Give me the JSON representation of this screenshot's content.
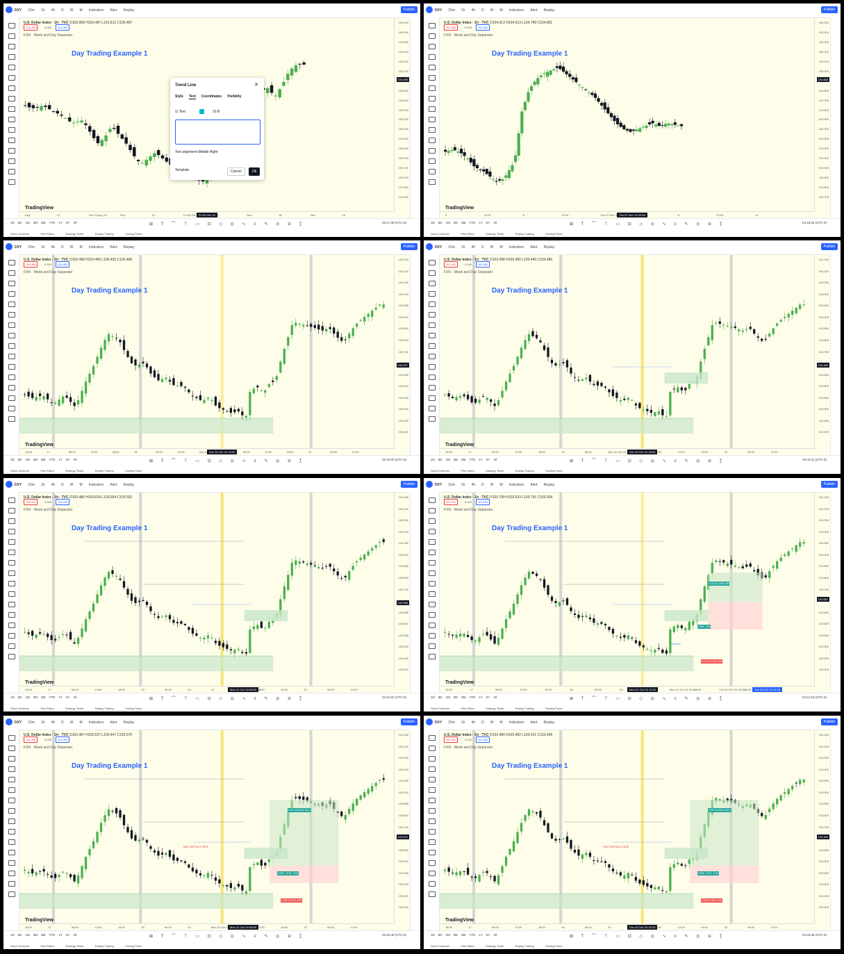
{
  "common": {
    "app_symbol": "DXY",
    "menu": [
      "15m",
      "1h",
      "4h",
      "D",
      "W",
      "M",
      "Indicators",
      "Alert",
      "Replay"
    ],
    "publish_label": "Publish",
    "instrument_title": "U.S. Dollar Index · 1h · TVC",
    "indicator_label": "FXN · Week and Day Separator",
    "chart_title": "Day Trading Example 1",
    "tradingview_logo": "TradingView",
    "ranges": [
      "1D",
      "5D",
      "1M",
      "3M",
      "6M",
      "YTD",
      "1Y",
      "5Y",
      "All"
    ],
    "bottom_tabs": [
      "Stock Screener",
      "Pine Editor",
      "Strategy Tester",
      "Replay Trading",
      "Trading Panel"
    ],
    "sell_label": "SELL",
    "buy_label": "BUY",
    "drawtools": "⊞ T ⌒ ⊤ ▭ ⊡ ◇ ◎ ∿ ≡ ✎ ◎ ⊖ T̲",
    "colors": {
      "up": "#26a69a",
      "bull_candle": "#4caf50",
      "bear_candle": "#131722",
      "accent": "#2962ff",
      "chart_bg": "#fefde9",
      "zone_green": "#c8e6c9",
      "zone_red": "#ffcdd2",
      "separator_grey": "#b0b7c3",
      "separator_yellow": "#f5e26b"
    }
  },
  "panels": [
    {
      "ohlc": "O103.968 H103.487 L101.812 C103.487",
      "sell": "104.405",
      "buy": "104.465",
      "spread": "0.060",
      "prices": [
        "105.200",
        "105.000",
        "104.800",
        "104.600",
        "104.400",
        "104.200",
        "104.000",
        "103.800",
        "103.600",
        "103.400",
        "103.200",
        "103.000",
        "102.800",
        "102.600",
        "102.400",
        "102.200",
        "102.000",
        "101.800",
        "101.600"
      ],
      "price_tag": "104.465",
      "times": [
        "Aug",
        "12",
        "Thu 22 Aug '24",
        "Sep",
        "16",
        "Fri 04 Oct '24",
        "23",
        "Nov",
        "18",
        "Dec",
        "16"
      ],
      "time_tag": "Fri 04 Oct '24",
      "clock": "04:17:38 (UTC-5)",
      "dialog": {
        "title": "Trend Line",
        "tabs": [
          "Style",
          "Text",
          "Coordinates",
          "Visibility"
        ],
        "text_checkbox": "Text",
        "font_size": "10",
        "alignment_label": "Text alignment",
        "align_v": "Middle",
        "align_h": "Right",
        "template": "Template",
        "cancel": "Cancel",
        "ok": "Ok"
      }
    },
    {
      "ohlc": "O104.913 H104.913 L104.789 C104.861",
      "sell": "104.456",
      "buy": "104.481",
      "spread": "0.025",
      "prices": [
        "105.500",
        "105.400",
        "105.300",
        "105.200",
        "105.100",
        "105.000",
        "104.900",
        "104.800",
        "104.700",
        "104.600",
        "104.500",
        "104.400",
        "104.300",
        "104.200",
        "104.100",
        "104.000",
        "103.900",
        "103.800",
        "103.700"
      ],
      "price_tag": "104.868",
      "times": [
        "5",
        "12:00",
        "6",
        "12:00",
        "Thu 07 Nov '24",
        "12:00",
        "8",
        "12:00",
        "11"
      ],
      "time_tag": "Thu 07 Nov '24 09:00",
      "clock": "04:18:28 (UTC-5)"
    },
    {
      "ohlc": "O103.498 H103.489 L103.420 C103.468",
      "sell": "104.458",
      "buy": "104.482",
      "spread": "0.024",
      "prices": [
        "104.150",
        "104.100",
        "104.050",
        "104.000",
        "103.950",
        "103.900",
        "103.850",
        "103.800",
        "103.750",
        "103.700",
        "103.650",
        "103.600",
        "103.550",
        "103.500",
        "103.450",
        "103.400"
      ],
      "price_tag": "103.497",
      "times": [
        "18:00",
        "17",
        "06:00",
        "12:00",
        "18:00",
        "18",
        "06:00",
        "12:00",
        "Sun 20 Oct '24 19:00",
        "21",
        "06:00",
        "12:00",
        "18:00",
        "22",
        "06:00",
        "12:00"
      ],
      "time_tag": "Sun 20 Oct '24 19:00",
      "clock": "04:19:20 (UTC-5)"
    },
    {
      "ohlc": "O103.498 H103.480 L103.440 C103.480",
      "sell": "104.441",
      "buy": "104.481",
      "spread": "0.040",
      "prices": [
        "104.150",
        "104.100",
        "104.050",
        "104.000",
        "103.950",
        "103.900",
        "103.850",
        "103.800",
        "103.750",
        "103.700",
        "103.650",
        "103.600",
        "103.550",
        "103.500",
        "103.450",
        "103.400"
      ],
      "price_tag": "103.460",
      "times": [
        "18:00",
        "17",
        "06:00",
        "12:00",
        "18:00",
        "18",
        "06:00",
        "Sun 20 Oct '24 18:00",
        "21",
        "06:00",
        "12:00",
        "18:00",
        "22",
        "06:00",
        "12:00"
      ],
      "time_tag": "Sun 20 Oct '24 18:00",
      "clock": "04:40:11 (UTC-5)"
    },
    {
      "ohlc": "O103.486 H103.639 L103.554 C103.592",
      "sell": "104.415",
      "buy": "104.430",
      "spread": "0.015",
      "prices": [
        "104.150",
        "104.100",
        "104.050",
        "104.000",
        "103.950",
        "103.900",
        "103.850",
        "103.800",
        "103.750",
        "103.700",
        "103.650",
        "103.600",
        "103.550",
        "103.500",
        "103.450",
        "103.400"
      ],
      "price_tag": "103.598",
      "times": [
        "18:00",
        "17",
        "06:00",
        "12:00",
        "18:00",
        "18",
        "06:00",
        "20",
        "21",
        "Mon 21 Oct '24 08:00",
        "12:00",
        "18:00",
        "22",
        "06:00",
        "12:00"
      ],
      "time_tag": "Mon 21 Oct '24 08:00",
      "clock": "04:41:02 (UTC-5)"
    },
    {
      "ohlc": "O103.799 H103.933 L103.791 C103.934",
      "sell": "104.411",
      "buy": "104.431",
      "spread": "0.020",
      "prices": [
        "104.150",
        "104.100",
        "104.050",
        "104.000",
        "103.950",
        "103.900",
        "103.850",
        "103.800",
        "103.750",
        "103.700",
        "103.650",
        "103.600",
        "103.550",
        "103.500",
        "103.450",
        "103.400"
      ],
      "price_tag": "103.587",
      "times": [
        "18:00",
        "17",
        "06:00",
        "12:00",
        "18:00",
        "18",
        "06:00",
        "20",
        "21",
        "Mon 21 Oct '24 11:00",
        "18:00",
        "Tue 22 Oct '24 02:00",
        "06:00",
        "12:00"
      ],
      "time_tag": "Mon 21 Oct '24 11:00",
      "time_tag2": "Tue 22 Oct '24 02:00",
      "clock": "04:41:53 (UTC-5)",
      "labels": {
        "target": "0.141 (0.14%) 198",
        "stop": "0.141 (0.14%) 198",
        "rr": "0.193 · 198",
        "qty": "0.00 AU"
      }
    },
    {
      "ohlc": "O103.487 H103.527 L103.447 C103.575",
      "sell": "104.438",
      "buy": "104.458",
      "spread": "0.020",
      "prices": [
        "104.150",
        "104.100",
        "104.050",
        "104.000",
        "103.950",
        "103.900",
        "103.850",
        "103.800",
        "103.750",
        "103.700",
        "103.650",
        "103.600",
        "103.550",
        "103.500",
        "103.450",
        "103.400"
      ],
      "price_tag": "103.874",
      "times": [
        "18:00",
        "17",
        "06:00",
        "12:00",
        "18:00",
        "18",
        "06:00",
        "20",
        "Mon 21 Oct '24 08:00",
        "06:00",
        "12:00",
        "18:00",
        "22",
        "06:00",
        "12:00"
      ],
      "time_tag": "Mon 21 Oct '24 08:00",
      "clock": "04:42:46 (UTC-5)",
      "labels": {
        "target": "0.297 (0.29%) 102.2",
        "stop": "0.082 (0.08%) 908",
        "rr": "0.095 · 3179 · 3.62",
        "partials": "TAKE PARTIALS HERE"
      }
    },
    {
      "ohlc": "O103.480 H103.482 L103.421 C103.499",
      "sell": "104.452",
      "buy": "104.482",
      "spread": "0.030",
      "prices": [
        "104.150",
        "104.100",
        "104.050",
        "104.000",
        "103.950",
        "103.900",
        "103.850",
        "103.800",
        "103.750",
        "103.700",
        "103.650",
        "103.600",
        "103.550",
        "103.500",
        "103.450",
        "103.400"
      ],
      "price_tag": "103.460",
      "times": [
        "18:00",
        "17",
        "06:00",
        "12:00",
        "18:00",
        "18",
        "06:00",
        "20",
        "Sun 20 Oct '24 21:00",
        "06:00",
        "12:00",
        "18:00",
        "22",
        "06:00",
        "12:00"
      ],
      "time_tag": "Sun 20 Oct '24 21:00",
      "clock": "04:43:35 (UTC-5)",
      "labels": {
        "target": "0.297 (0.29%) 102.2",
        "stop": "0.082 (0.08%) 908",
        "rr": "0.095 · 3179 · 3.62",
        "partials": "TAKE PARTIALS HERE"
      }
    }
  ]
}
